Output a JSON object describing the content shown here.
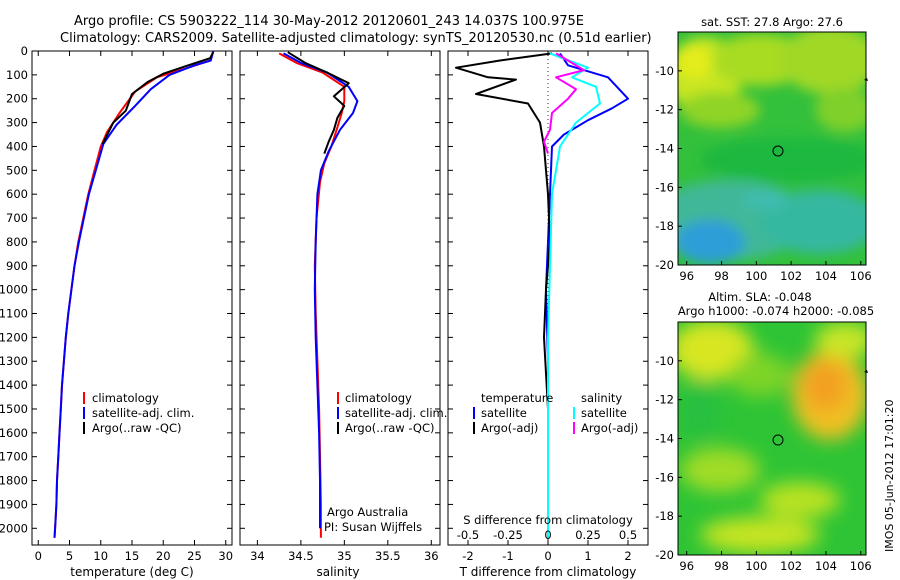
{
  "header": {
    "line1": "Argo profile: CS 5903222_114 30-May-2012 20120601_243 14.037S 100.975E",
    "line2": "Climatology: CARS2009. Satellite-adjusted climatology: synTS_20120530.nc (0.51d earlier)"
  },
  "side_stamp": "IMOS 05-Jun-2012 17:01:20",
  "colors": {
    "climatology": "#ff0000",
    "satellite": "#0000ff",
    "argo": "#000000",
    "salinity_satellite": "#00ffff",
    "salinity_argo": "#ff00ff"
  },
  "chart_data": [
    {
      "type": "line",
      "id": "temperature",
      "xlabel": "temperature (deg C)",
      "ylabel": "",
      "xlim": [
        -1,
        31
      ],
      "ylim": [
        2070,
        0
      ],
      "xticks": [
        "0",
        "5",
        "10",
        "15",
        "20",
        "25",
        "30"
      ],
      "xtick_values": [
        0,
        5,
        10,
        15,
        20,
        25,
        30
      ],
      "yticks": [
        0,
        100,
        200,
        300,
        400,
        500,
        600,
        700,
        800,
        900,
        1000,
        1100,
        1200,
        1300,
        1400,
        1500,
        1600,
        1700,
        1800,
        1900,
        2000
      ],
      "legend": [
        "climatology",
        "satellite-adj. clim.",
        "Argo(..raw -QC)"
      ],
      "series": [
        {
          "name": "climatology",
          "color": "#ff0000",
          "points": [
            [
              28,
              0
            ],
            [
              27.5,
              40
            ],
            [
              24,
              70
            ],
            [
              19,
              110
            ],
            [
              15.5,
              170
            ],
            [
              13,
              260
            ],
            [
              11,
              340
            ],
            [
              10,
              400
            ],
            [
              9,
              500
            ],
            [
              8,
              600
            ],
            [
              7.2,
              700
            ],
            [
              6.4,
              800
            ],
            [
              5.8,
              900
            ],
            [
              5.3,
              1000
            ],
            [
              4.8,
              1100
            ],
            [
              4.4,
              1200
            ],
            [
              4.1,
              1300
            ],
            [
              3.8,
              1400
            ],
            [
              3.6,
              1500
            ],
            [
              3.4,
              1600
            ],
            [
              3.2,
              1700
            ],
            [
              3.0,
              1800
            ],
            [
              2.9,
              1900
            ],
            [
              2.7,
              2000
            ],
            [
              2.6,
              2040
            ]
          ]
        },
        {
          "name": "satellite-adj. clim.",
          "color": "#0000ff",
          "points": [
            [
              28,
              0
            ],
            [
              27.6,
              40
            ],
            [
              25,
              60
            ],
            [
              21,
              100
            ],
            [
              18,
              160
            ],
            [
              15.5,
              230
            ],
            [
              12.5,
              310
            ],
            [
              10.4,
              390
            ],
            [
              9.2,
              500
            ],
            [
              8.1,
              600
            ],
            [
              7.3,
              700
            ],
            [
              6.5,
              800
            ],
            [
              5.8,
              900
            ],
            [
              5.3,
              1000
            ],
            [
              4.8,
              1100
            ],
            [
              4.4,
              1200
            ],
            [
              4.1,
              1300
            ],
            [
              3.8,
              1400
            ],
            [
              3.6,
              1500
            ],
            [
              3.4,
              1600
            ],
            [
              3.2,
              1700
            ],
            [
              3.0,
              1800
            ],
            [
              2.9,
              1900
            ],
            [
              2.7,
              2000
            ],
            [
              2.6,
              2040
            ]
          ]
        },
        {
          "name": "Argo(..raw -QC)",
          "color": "#000000",
          "points": [
            [
              28,
              5
            ],
            [
              27.5,
              30
            ],
            [
              24,
              60
            ],
            [
              20,
              95
            ],
            [
              17.5,
              130
            ],
            [
              15,
              180
            ],
            [
              14,
              250
            ],
            [
              12,
              300
            ],
            [
              10.3,
              390
            ]
          ]
        }
      ]
    },
    {
      "type": "line",
      "id": "salinity",
      "xlabel": "salinity",
      "xlim": [
        33.8,
        36.1
      ],
      "ylim": [
        2070,
        0
      ],
      "xticks": [
        "34",
        "34.5",
        "35",
        "35.5",
        "36"
      ],
      "xtick_values": [
        34,
        34.5,
        35,
        35.5,
        36
      ],
      "legend": [
        "climatology",
        "satellite-adj. clim.",
        "Argo(..raw -QC)"
      ],
      "annotation": [
        "Argo Australia",
        "PI: Susan Wijffels"
      ],
      "series": [
        {
          "name": "climatology",
          "color": "#ff0000",
          "points": [
            [
              34.25,
              10
            ],
            [
              34.45,
              50
            ],
            [
              34.75,
              90
            ],
            [
              35.0,
              150
            ],
            [
              35.0,
              210
            ],
            [
              34.97,
              260
            ],
            [
              34.92,
              320
            ],
            [
              34.85,
              400
            ],
            [
              34.77,
              470
            ],
            [
              34.72,
              550
            ],
            [
              34.68,
              700
            ],
            [
              34.66,
              900
            ],
            [
              34.67,
              1100
            ],
            [
              34.69,
              1300
            ],
            [
              34.71,
              1500
            ],
            [
              34.72,
              1700
            ],
            [
              34.73,
              1900
            ],
            [
              34.73,
              2040
            ]
          ]
        },
        {
          "name": "satellite-adj. clim.",
          "color": "#0000ff",
          "points": [
            [
              34.3,
              10
            ],
            [
              34.5,
              50
            ],
            [
              34.8,
              90
            ],
            [
              35.05,
              150
            ],
            [
              35.15,
              210
            ],
            [
              35.1,
              260
            ],
            [
              34.95,
              330
            ],
            [
              34.82,
              420
            ],
            [
              34.73,
              500
            ],
            [
              34.69,
              600
            ],
            [
              34.67,
              800
            ],
            [
              34.66,
              1000
            ],
            [
              34.67,
              1200
            ],
            [
              34.69,
              1400
            ],
            [
              34.71,
              1600
            ],
            [
              34.72,
              1800
            ],
            [
              34.72,
              2000
            ]
          ]
        },
        {
          "name": "Argo(..raw -QC)",
          "color": "#000000",
          "points": [
            [
              34.35,
              5
            ],
            [
              34.55,
              50
            ],
            [
              34.8,
              90
            ],
            [
              35.05,
              135
            ],
            [
              34.88,
              190
            ],
            [
              35.0,
              230
            ],
            [
              34.92,
              280
            ],
            [
              34.88,
              330
            ],
            [
              34.82,
              380
            ],
            [
              34.77,
              430
            ]
          ]
        }
      ]
    },
    {
      "type": "line",
      "id": "difference",
      "xlabel": "T difference from climatology",
      "xlabel2": "S difference from climatology",
      "xlim": [
        -2.5,
        2.5
      ],
      "ylim": [
        2070,
        0
      ],
      "xticks": [
        "-2",
        "-1",
        "0",
        "1",
        "2"
      ],
      "xtick_values": [
        -2,
        -1,
        0,
        1,
        2
      ],
      "sticks": [
        "-0.5",
        "-0.25",
        "0",
        "0.25",
        "0.5"
      ],
      "stick_values": [
        -0.5,
        -0.25,
        0,
        0.25,
        0.5
      ],
      "legend_temperature_title": "temperature",
      "legend_salinity_title": "salinity",
      "legend": [
        "satellite",
        "Argo(-adj)",
        "satellite",
        "Argo(-adj)"
      ],
      "series": [
        {
          "name": "temperature satellite",
          "color": "#0000ff",
          "points": [
            [
              0.3,
              10
            ],
            [
              0.5,
              60
            ],
            [
              1.5,
              110
            ],
            [
              2.0,
              200
            ],
            [
              1.6,
              240
            ],
            [
              1.0,
              290
            ],
            [
              0.4,
              350
            ],
            [
              0.1,
              400
            ],
            [
              0.05,
              600
            ],
            [
              0,
              800
            ],
            [
              -0.05,
              1000
            ],
            [
              0,
              1300
            ],
            [
              0,
              1600
            ],
            [
              0,
              2040
            ]
          ]
        },
        {
          "name": "temperature Argo(-adj)",
          "color": "#000000",
          "points": [
            [
              0.1,
              10
            ],
            [
              -1.2,
              40
            ],
            [
              -2.3,
              70
            ],
            [
              -1.5,
              110
            ],
            [
              -0.8,
              120
            ],
            [
              -1.8,
              180
            ],
            [
              -0.5,
              220
            ],
            [
              -0.2,
              300
            ],
            [
              -0.1,
              400
            ],
            [
              0,
              600
            ],
            [
              0.05,
              800
            ],
            [
              -0.05,
              1000
            ],
            [
              -0.1,
              1200
            ],
            [
              0,
              1500
            ],
            [
              0,
              2040
            ]
          ]
        },
        {
          "name": "salinity satellite",
          "color": "#00ffff",
          "points": [
            [
              0.05,
              10
            ],
            [
              1.0,
              70
            ],
            [
              0.6,
              110
            ],
            [
              1.2,
              150
            ],
            [
              1.3,
              220
            ],
            [
              0.7,
              300
            ],
            [
              0.3,
              400
            ],
            [
              0.1,
              600
            ],
            [
              0.05,
              900
            ],
            [
              0,
              1200
            ],
            [
              0,
              1500
            ],
            [
              0,
              1800
            ],
            [
              0,
              2040
            ]
          ]
        },
        {
          "name": "salinity Argo(-adj)",
          "color": "#ff00ff",
          "points": [
            [
              0.2,
              10
            ],
            [
              0.9,
              80
            ],
            [
              0.2,
              110
            ],
            [
              0.7,
              160
            ],
            [
              0.5,
              200
            ],
            [
              0.1,
              260
            ],
            [
              0.05,
              330
            ],
            [
              -0.1,
              380
            ],
            [
              0,
              430
            ]
          ]
        }
      ]
    },
    {
      "type": "heatmap",
      "id": "sst-map",
      "title": "sat. SST: 27.8 Argo: 27.6",
      "xlim": [
        95.5,
        106.3
      ],
      "ylim": [
        -20,
        -8
      ],
      "xticks": [
        "96",
        "98",
        "100",
        "102",
        "104",
        "106"
      ],
      "xtick_values": [
        96,
        98,
        100,
        102,
        104,
        106
      ],
      "yticks": [
        "-10",
        "-12",
        "-14",
        "-16",
        "-18",
        "-20"
      ],
      "ytick_values": [
        -10,
        -12,
        -14,
        -16,
        -18,
        -20
      ],
      "marker": [
        100.975,
        -14.037
      ]
    },
    {
      "type": "heatmap",
      "id": "sla-map",
      "title": "Altim. SLA: -0.048",
      "subtitle": "Argo h1000: -0.074 h2000: -0.085",
      "xlim": [
        95.5,
        106.3
      ],
      "ylim": [
        -20,
        -8
      ],
      "xticks": [
        "96",
        "98",
        "100",
        "102",
        "104",
        "106"
      ],
      "xtick_values": [
        96,
        98,
        100,
        102,
        104,
        106
      ],
      "yticks": [
        "-10",
        "-12",
        "-14",
        "-16",
        "-18",
        "-20"
      ],
      "ytick_values": [
        -10,
        -12,
        -14,
        -16,
        -18,
        -20
      ],
      "marker": [
        100.975,
        -14.037
      ]
    }
  ]
}
